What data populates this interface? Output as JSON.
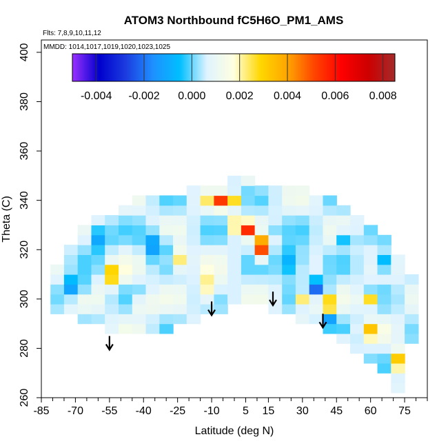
{
  "chart_data": {
    "type": "heatmap",
    "title": "ATOM3 Northbound fC5H6O_PM1_AMS",
    "subtitle_flights": "Flts: 7,8,9,10,11,12",
    "subtitle_dates": "MMDD: 1014,1017,1019,1020,1023,1025",
    "xlabel": "Latitude (deg N)",
    "ylabel": "Theta (C)",
    "xlim": [
      -85,
      85
    ],
    "ylim": [
      260,
      405
    ],
    "x_tick_labels": [
      "-85",
      "-70",
      "-55",
      "-40",
      "-25",
      "-10",
      "5",
      "15",
      "30",
      "45",
      "60",
      "75"
    ],
    "x_tick_values": [
      -85,
      -70,
      -55,
      -40,
      -25,
      -10,
      5,
      15,
      30,
      45,
      60,
      75
    ],
    "x_minor_ticks": [
      -80,
      -75,
      -65,
      -60,
      -50,
      -45,
      -35,
      -30,
      -20,
      -15,
      -5,
      0,
      10,
      20,
      25,
      35,
      40,
      50,
      55,
      65,
      70,
      80,
      85
    ],
    "y_ticks": [
      260,
      280,
      300,
      320,
      340,
      360,
      380,
      400
    ],
    "colorbar": {
      "min": -0.005,
      "max": 0.0085,
      "tick_labels": [
        "-0.004",
        "-0.002",
        "0.000",
        "0.002",
        "0.004",
        "0.006",
        "0.008"
      ],
      "tick_values": [
        -0.004,
        -0.002,
        0.0,
        0.002,
        0.004,
        0.006,
        0.008
      ],
      "colors": [
        "#9b30ff",
        "#0000cd",
        "#1c3de0",
        "#1e90ff",
        "#00bfff",
        "#dff3ff",
        "#ffffe0",
        "#ffd700",
        "#ffa500",
        "#ff4500",
        "#ff0000",
        "#cd0000",
        "#a52a2a"
      ]
    },
    "arrows_lat": [
      -55,
      -10,
      17,
      39
    ],
    "arrows_theta_top": [
      285,
      299,
      303,
      294
    ],
    "grid_lat": [
      -78,
      -72,
      -66,
      -60,
      -54,
      -48,
      -42,
      -36,
      -30,
      -24,
      -18,
      -12,
      -6,
      0,
      6,
      12,
      18,
      24,
      30,
      36,
      42,
      48,
      54,
      60,
      66,
      72,
      78
    ],
    "grid_theta": [
      264,
      268,
      272,
      276,
      280,
      284,
      288,
      292,
      296,
      300,
      304,
      308,
      312,
      316,
      320,
      324,
      328,
      332,
      336,
      340,
      344,
      348
    ],
    "domain_bottom": [
      [
        -80,
        297
      ],
      [
        -70,
        294
      ],
      [
        -60,
        291
      ],
      [
        -50,
        289
      ],
      [
        -40,
        287
      ],
      [
        -30,
        289
      ],
      [
        -20,
        293
      ],
      [
        -10,
        297
      ],
      [
        0,
        299
      ],
      [
        10,
        301
      ],
      [
        15,
        299
      ],
      [
        17,
        298
      ],
      [
        25,
        297
      ],
      [
        30,
        294
      ],
      [
        38,
        292
      ],
      [
        45,
        288
      ],
      [
        50,
        284
      ],
      [
        55,
        280
      ],
      [
        60,
        276
      ],
      [
        65,
        272
      ],
      [
        70,
        266
      ],
      [
        74,
        262
      ],
      [
        76,
        268
      ],
      [
        78,
        283
      ]
    ],
    "domain_top": [
      [
        -80,
        310
      ],
      [
        -75,
        318
      ],
      [
        -70,
        324
      ],
      [
        -60,
        330
      ],
      [
        -50,
        335
      ],
      [
        -40,
        339
      ],
      [
        -30,
        341
      ],
      [
        -20,
        342
      ],
      [
        -10,
        343
      ],
      [
        0,
        346
      ],
      [
        5,
        349
      ],
      [
        10,
        347
      ],
      [
        15,
        344
      ],
      [
        25,
        343
      ],
      [
        35,
        341
      ],
      [
        45,
        337
      ],
      [
        50,
        333
      ],
      [
        55,
        330
      ],
      [
        60,
        326
      ],
      [
        65,
        323
      ],
      [
        70,
        318
      ],
      [
        75,
        313
      ],
      [
        78,
        308
      ]
    ],
    "features": [
      {
        "lat": -53,
        "theta": 310,
        "slat": 4,
        "sth": 4,
        "v": 0.0035
      },
      {
        "lat": -25,
        "theta": 316,
        "slat": 4,
        "sth": 4,
        "v": 0.003
      },
      {
        "lat": -10,
        "theta": 305,
        "slat": 3,
        "sth": 6,
        "v": 0.0035
      },
      {
        "lat": 2,
        "theta": 330,
        "slat": 3,
        "sth": 2,
        "v": 0.0065
      },
      {
        "lat": 7,
        "theta": 329,
        "slat": 2,
        "sth": 2,
        "v": 0.007
      },
      {
        "lat": 12,
        "theta": 321,
        "slat": 3,
        "sth": 4,
        "v": 0.0055
      },
      {
        "lat": 15,
        "theta": 329,
        "slat": 2,
        "sth": 2,
        "v": -0.005
      },
      {
        "lat": -5,
        "theta": 339,
        "slat": 6,
        "sth": 2,
        "v": 0.006
      },
      {
        "lat": 10,
        "theta": 347,
        "slat": 3,
        "sth": 2,
        "v": 0.004
      },
      {
        "lat": 40,
        "theta": 298,
        "slat": 3,
        "sth": 3,
        "v": 0.0045
      },
      {
        "lat": 60,
        "theta": 299,
        "slat": 4,
        "sth": 2,
        "v": 0.004
      },
      {
        "lat": 60,
        "theta": 287,
        "slat": 4,
        "sth": 3,
        "v": 0.003
      },
      {
        "lat": 38,
        "theta": 305,
        "slat": 3,
        "sth": 3,
        "v": -0.004
      },
      {
        "lat": 40,
        "theta": 291,
        "slat": 2,
        "sth": 2,
        "v": -0.005
      },
      {
        "lat": 50,
        "theta": 325,
        "slat": 3,
        "sth": 3,
        "v": -0.002
      },
      {
        "lat": -70,
        "theta": 305,
        "slat": 4,
        "sth": 4,
        "v": -0.002
      },
      {
        "lat": -60,
        "theta": 325,
        "slat": 5,
        "sth": 5,
        "v": -0.0015
      },
      {
        "lat": -35,
        "theta": 322,
        "slat": 5,
        "sth": 5,
        "v": -0.0015
      },
      {
        "lat": 25,
        "theta": 315,
        "slat": 6,
        "sth": 6,
        "v": -0.0015
      },
      {
        "lat": 65,
        "theta": 315,
        "slat": 4,
        "sth": 4,
        "v": -0.0015
      },
      {
        "lat": 72,
        "theta": 275,
        "slat": 3,
        "sth": 4,
        "v": 0.0035
      },
      {
        "lat": 30,
        "theta": 300,
        "slat": 3,
        "sth": 3,
        "v": 0.003
      },
      {
        "lat": -40,
        "theta": 298,
        "slat": 5,
        "sth": 3,
        "v": 0.002
      },
      {
        "lat": 45,
        "theta": 283,
        "slat": 3,
        "sth": 2,
        "v": 0.003
      }
    ]
  }
}
